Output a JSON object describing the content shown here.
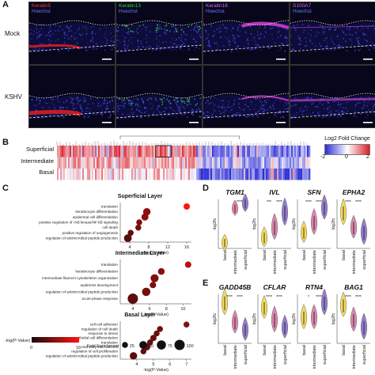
{
  "panel_a": {
    "letter": "A",
    "rows": [
      "Mock",
      "KSHV"
    ],
    "columns": [
      {
        "label": "Keratin5",
        "label_color": "#ff3b3b",
        "counter": "Hoechst",
        "signal_color": "#e0201e"
      },
      {
        "label": "Keratin13",
        "label_color": "#3bd34a",
        "counter": "Hoechst",
        "signal_color": "#39b34a"
      },
      {
        "label": "Keratin16",
        "label_color": "#d866ff",
        "counter": "Hoechst",
        "signal_color": "#d23bd6"
      },
      {
        "label": "S100A7",
        "label_color": "#e066ff",
        "counter": "Hoechst",
        "signal_color": "#b245c9"
      }
    ]
  },
  "panel_b": {
    "letter": "B",
    "rows": [
      "Superficial",
      "Intermediate",
      "Basal"
    ],
    "legend_title": "Log2 Fold Change",
    "legend_ticks": [
      "-2",
      "0",
      "2"
    ],
    "colors": {
      "low": "#2b2bd6",
      "mid": "#ffffff",
      "high": "#d61e2b"
    }
  },
  "panel_c": {
    "letter": "C",
    "chart_data": [
      {
        "type": "scatter",
        "title": "Superficial Layer",
        "xlabel": "-log(P-Value)",
        "xticks": [
          4,
          8,
          12,
          16
        ],
        "xlim": [
          2,
          17
        ],
        "terms": [
          "translation",
          "keratinocyte differentiation",
          "epidermal cell differentiation",
          "positive regulation of I-kB kinase/NF-kB signaling",
          "cell death",
          "positive regulation of angiogenesis",
          "regulation of antimicrobial peptide production"
        ],
        "x": [
          16.0,
          7.6,
          7.2,
          6.0,
          5.8,
          4.2,
          3.6
        ],
        "enrichment": [
          30,
          45,
          40,
          25,
          25,
          25,
          50
        ],
        "neglogp_color": [
          16,
          7.6,
          7.2,
          6.0,
          5.8,
          4.2,
          3.6
        ]
      },
      {
        "type": "scatter",
        "title": "Intermediate Layer",
        "xlabel": "-log(P-Value)",
        "xticks": [
          4,
          6,
          8,
          10
        ],
        "xlim": [
          2.5,
          11
        ],
        "terms": [
          "translation",
          "keratinocyte differentiation",
          "intermediate filament cytoskeleton organization",
          "epidermis development",
          "regulation of antimicrobial peptide production",
          "acute-phase response"
        ],
        "x": [
          10.6,
          7.4,
          6.6,
          6.4,
          5.6,
          4.0
        ],
        "enrichment": [
          30,
          35,
          55,
          30,
          60,
          100
        ],
        "neglogp_color": [
          10.6,
          7.4,
          6.6,
          6.4,
          5.6,
          4.0
        ]
      },
      {
        "type": "scatter",
        "title": "Basal Layer",
        "xlabel": "-log(P-Value)",
        "xticks": [
          4,
          5,
          6,
          7
        ],
        "xlim": [
          3,
          7.3
        ],
        "terms": [
          "cell-cell adhesion",
          "regulation of cell death",
          "response to stress",
          "epithelial cell differentiation",
          "translation",
          "viral entry into host cell",
          "regulation of cell proliferation",
          "regulation of antimicrobial peptide production"
        ],
        "x": [
          7.0,
          5.4,
          5.2,
          5.0,
          4.8,
          4.6,
          4.4,
          3.8
        ],
        "enrichment": [
          25,
          25,
          25,
          30,
          25,
          40,
          25,
          45
        ],
        "neglogp_color": [
          7.0,
          5.4,
          5.2,
          5.0,
          4.8,
          4.6,
          4.4,
          3.8
        ]
      }
    ],
    "color_legend_title": "-log(P-Value)",
    "color_legend_ticks": [
      "0",
      "16"
    ],
    "size_legend_title": "Fold Enrichment",
    "size_legend_values": [
      "25",
      "50",
      "75",
      "100"
    ]
  },
  "panel_d": {
    "letter": "D",
    "ylabel": "log2fc",
    "categories": [
      "basal",
      "intermediate",
      "superficial"
    ],
    "genes": [
      "TGM1",
      "IVL",
      "SFN",
      "EPHA2"
    ],
    "significance": [
      [
        "",
        "****"
      ],
      [
        "***",
        "****"
      ],
      [
        "****",
        "****"
      ],
      [
        "****",
        "****"
      ]
    ]
  },
  "panel_e": {
    "letter": "E",
    "ylabel": "log2fc",
    "categories": [
      "basal",
      "intermediate",
      "superficial"
    ],
    "genes": [
      "GADD45B",
      "CFLAR",
      "RTN4",
      "BAG1"
    ],
    "significance": [
      [
        "****",
        "****"
      ],
      [
        "****",
        "****"
      ],
      [
        "*",
        "****"
      ],
      [
        "****",
        "****"
      ]
    ]
  }
}
